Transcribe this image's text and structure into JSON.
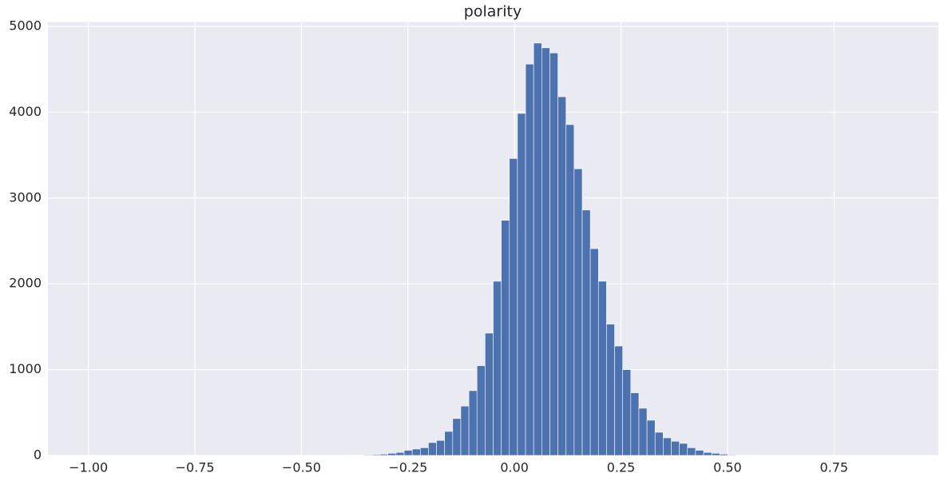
{
  "chart_data": {
    "type": "histogram",
    "title": "polarity",
    "color": "#4c72b0",
    "grid": true,
    "bins": [
      -1,
      -0.981,
      -0.962,
      -0.943,
      -0.924,
      -0.905,
      -0.886,
      -0.867,
      -0.848,
      -0.829,
      -0.81,
      -0.791,
      -0.772,
      -0.753,
      -0.734,
      -0.715,
      -0.696,
      -0.677,
      -0.658,
      -0.639,
      -0.62,
      -0.601,
      -0.582,
      -0.563,
      -0.544,
      -0.525,
      -0.506,
      -0.487,
      -0.468,
      -0.449,
      -0.43,
      -0.411,
      -0.392,
      -0.373,
      -0.354,
      -0.335,
      -0.316,
      -0.297,
      -0.278,
      -0.259,
      -0.24,
      -0.221,
      -0.202,
      -0.183,
      -0.164,
      -0.145,
      -0.126,
      -0.107,
      -0.088,
      -0.069,
      -0.05,
      -0.031,
      -0.012,
      0.007,
      0.026,
      0.045,
      0.064,
      0.083,
      0.102,
      0.121,
      0.14,
      0.159,
      0.178,
      0.197,
      0.216,
      0.235,
      0.254,
      0.273,
      0.292,
      0.311,
      0.33,
      0.349,
      0.368,
      0.387,
      0.406,
      0.425,
      0.444,
      0.463,
      0.482,
      0.501,
      0.52,
      0.539,
      0.558,
      0.577,
      0.596,
      0.615,
      0.634,
      0.653,
      0.672,
      0.691,
      0.71,
      0.729,
      0.748,
      0.767,
      0.786,
      0.805,
      0.824,
      0.843,
      0.862,
      0.881,
      0.9
    ],
    "values": [
      0,
      0,
      0,
      0,
      0,
      0,
      0,
      0,
      0,
      0,
      0,
      0,
      0,
      0,
      0,
      0,
      0,
      0,
      0,
      0,
      0,
      0,
      0,
      0,
      0,
      0,
      0,
      0,
      1,
      1,
      2,
      2,
      3,
      5,
      8,
      10,
      15,
      25,
      35,
      60,
      75,
      90,
      150,
      175,
      280,
      430,
      575,
      755,
      1045,
      1425,
      2030,
      2740,
      3460,
      3985,
      4560,
      4805,
      4750,
      4690,
      4180,
      3855,
      3340,
      2860,
      2410,
      2030,
      1530,
      1275,
      1000,
      730,
      550,
      410,
      270,
      205,
      165,
      140,
      90,
      60,
      35,
      25,
      15,
      8,
      5,
      3,
      2,
      1,
      1,
      0,
      0,
      0,
      0,
      0,
      0,
      0,
      0,
      0,
      0,
      0,
      0,
      0,
      0,
      0
    ],
    "xlim": [
      -1.095,
      0.995
    ],
    "xticks": [
      {
        "value": -1,
        "label": "−1.00"
      },
      {
        "value": -0.75,
        "label": "−0.75"
      },
      {
        "value": -0.5,
        "label": "−0.50"
      },
      {
        "value": -0.25,
        "label": "−0.25"
      },
      {
        "value": 0,
        "label": "0.00"
      },
      {
        "value": 0.25,
        "label": "0.25"
      },
      {
        "value": 0.5,
        "label": "0.50"
      },
      {
        "value": 0.75,
        "label": "0.75"
      }
    ],
    "ylim": [
      0,
      5050
    ],
    "yticks": [
      0,
      1000,
      2000,
      3000,
      4000,
      5000
    ]
  }
}
